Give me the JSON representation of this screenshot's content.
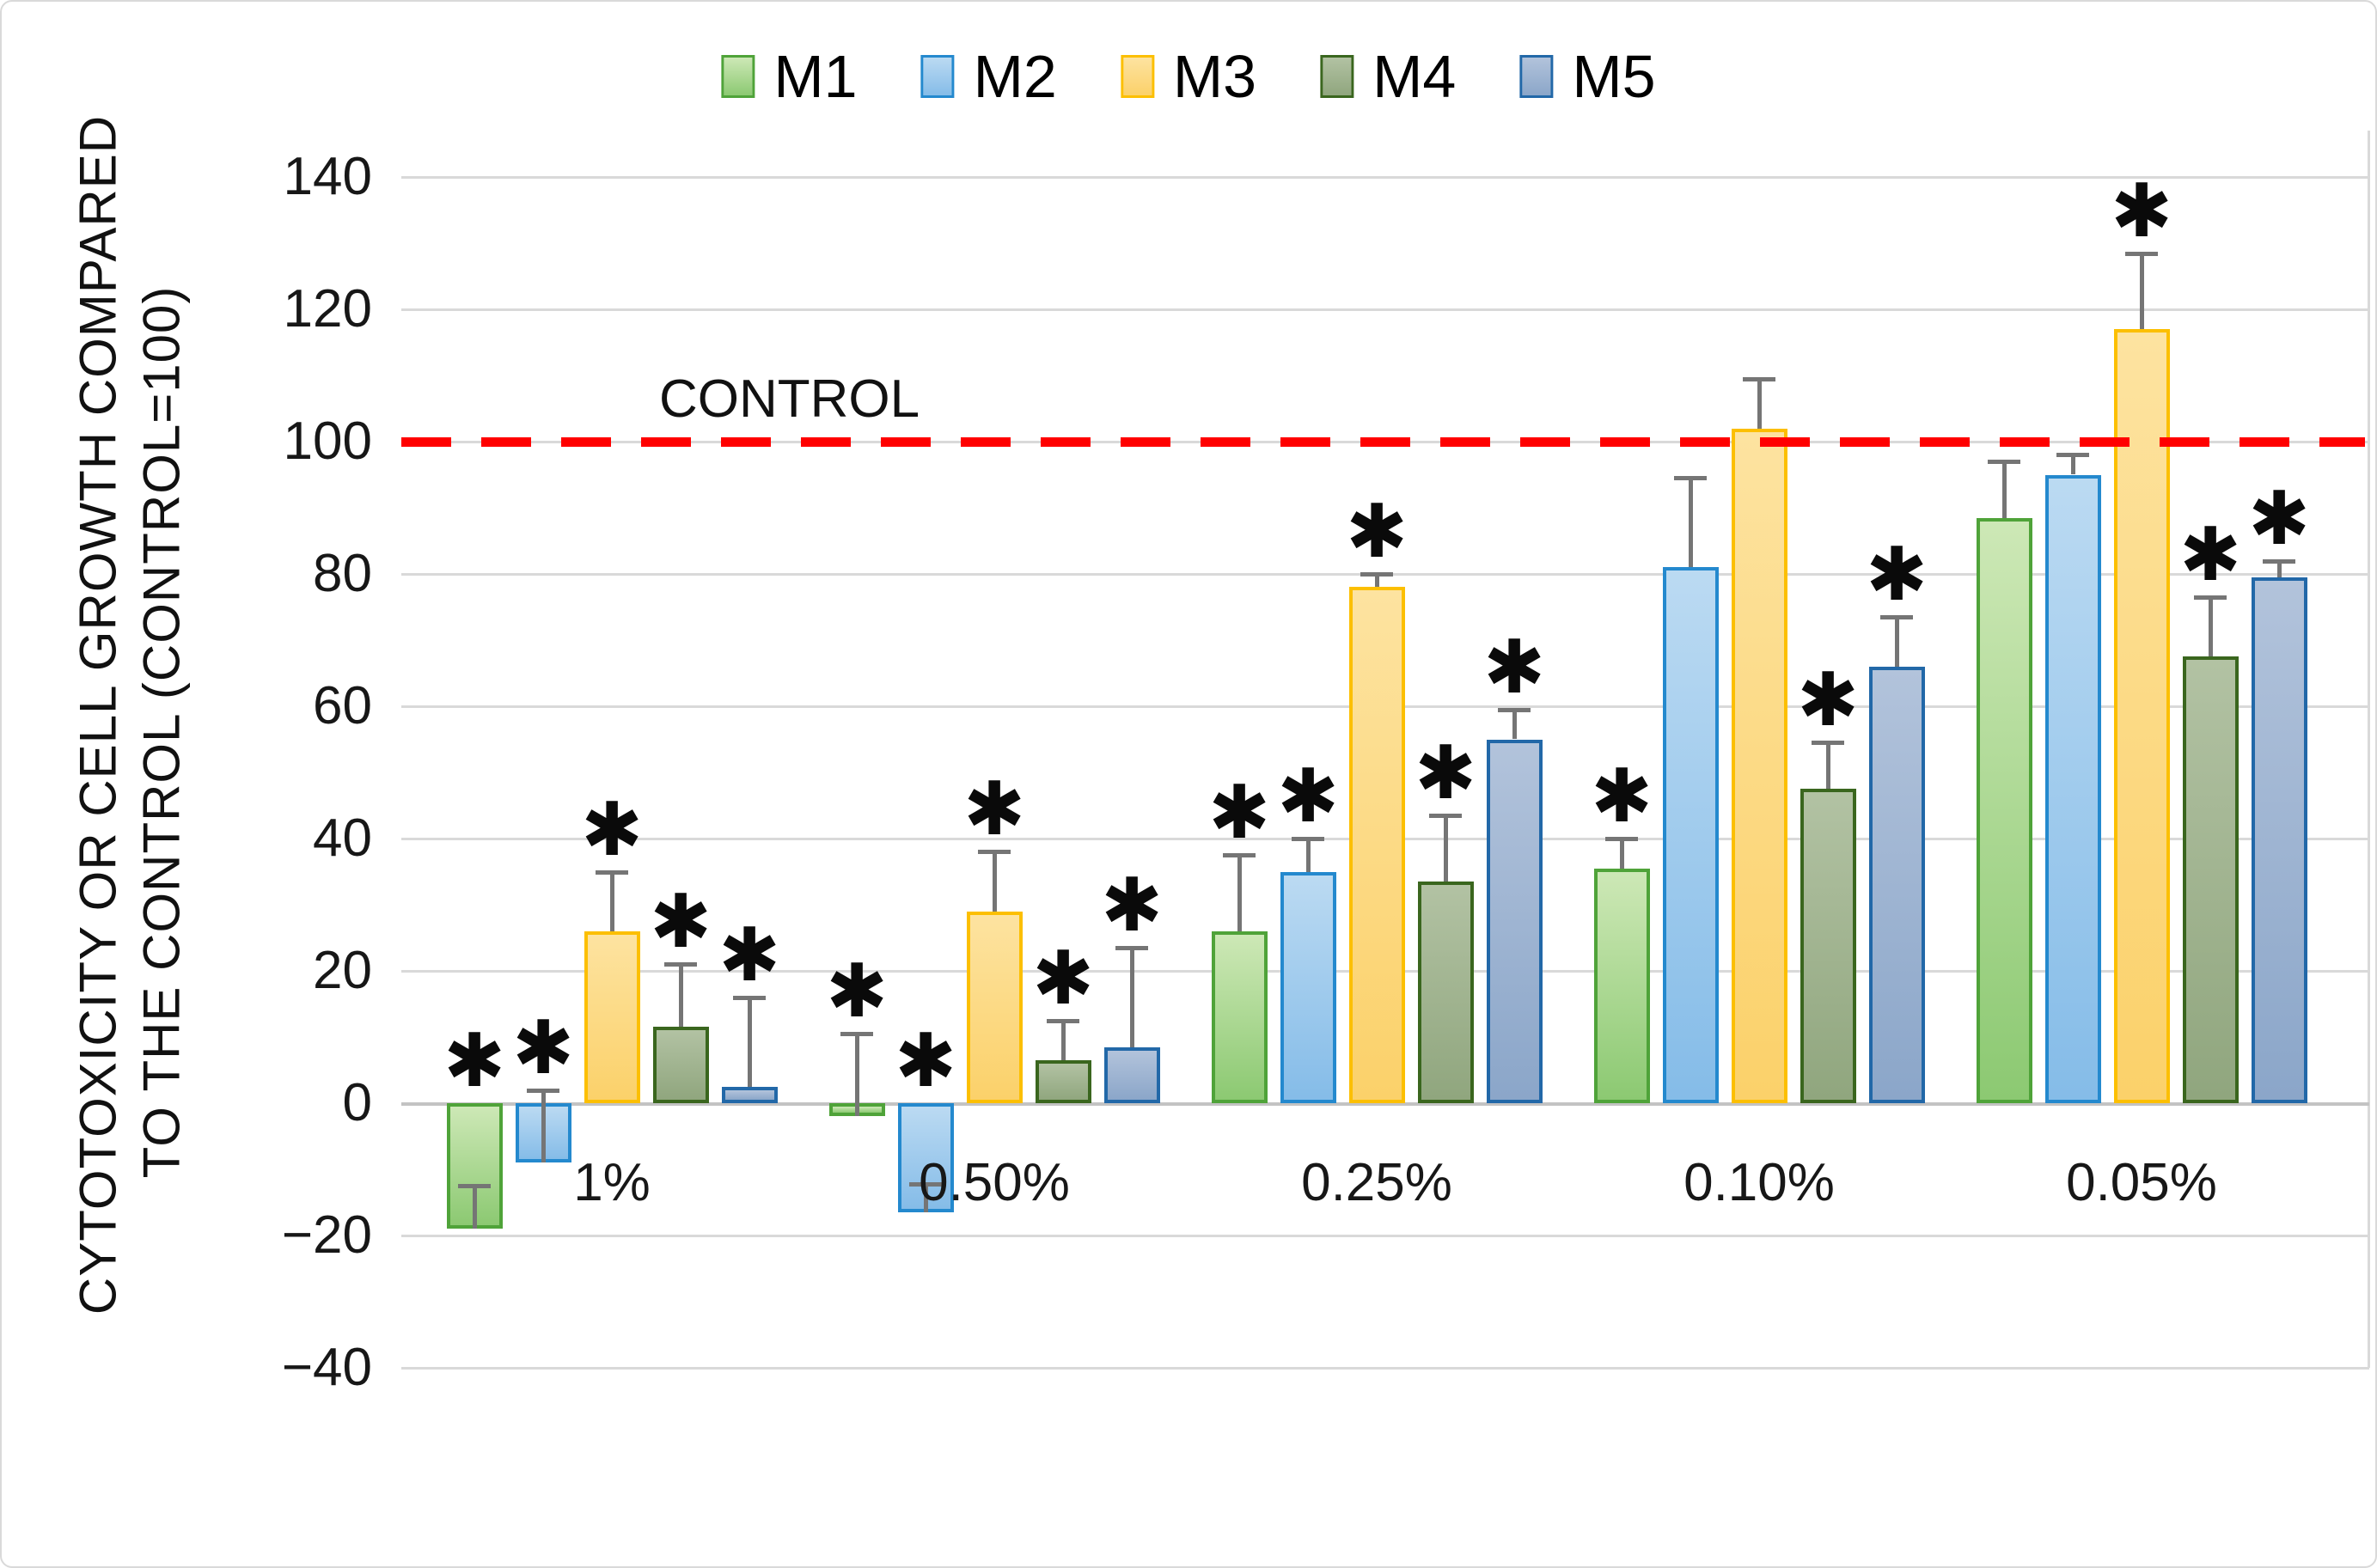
{
  "chart_data": {
    "type": "bar",
    "title": "",
    "ylabel_line1": "CYTOTOXICITY OR CELL GROWTH COMPARED",
    "ylabel_line2": "TO THE CONTROL (CONTROL=100)",
    "xlabel": "",
    "categories": [
      "1%",
      "0.50%",
      "0.25%",
      "0.10%",
      "0.05%"
    ],
    "y_ticks": [
      140,
      120,
      100,
      80,
      60,
      40,
      20,
      0,
      -20,
      -40
    ],
    "ylim": [
      -40,
      140
    ],
    "grid": true,
    "legend_position": "top",
    "significance_marker": "✱",
    "control_line": {
      "label": "CONTROL",
      "value": 100,
      "color": "#FF0000"
    },
    "series": [
      {
        "name": "M1",
        "values": [
          -19,
          -2,
          26,
          35.5,
          88.5
        ],
        "errors": [
          6.5,
          12.5,
          11.5,
          4.5,
          8.5
        ],
        "significant": [
          true,
          true,
          true,
          true,
          false
        ],
        "border": "#4FA339",
        "fill_top": "#CDE8B6",
        "fill_bottom": "#8CC972"
      },
      {
        "name": "M2",
        "values": [
          -9,
          -16.5,
          35,
          81,
          95
        ],
        "errors": [
          11,
          4.3,
          5,
          13.5,
          3
        ],
        "significant": [
          true,
          true,
          true,
          false,
          false
        ],
        "border": "#2489CE",
        "fill_top": "#BBDAF2",
        "fill_bottom": "#85BCE8"
      },
      {
        "name": "M3",
        "values": [
          26,
          29,
          78,
          102,
          117
        ],
        "errors": [
          9,
          9,
          2,
          7.5,
          11.5
        ],
        "significant": [
          true,
          true,
          true,
          false,
          true
        ],
        "border": "#FCBF01",
        "fill_top": "#FDE3A0",
        "fill_bottom": "#FBD16A"
      },
      {
        "name": "M4",
        "values": [
          11.5,
          6.5,
          33.5,
          47.5,
          67.5
        ],
        "errors": [
          9.5,
          6,
          10,
          7,
          9
        ],
        "significant": [
          true,
          true,
          true,
          true,
          true
        ],
        "border": "#3A661E",
        "fill_top": "#B2C2A3",
        "fill_bottom": "#90A67E"
      },
      {
        "name": "M5",
        "values": [
          2.5,
          8.5,
          55,
          66,
          79.5
        ],
        "errors": [
          13.5,
          15,
          4.5,
          7.5,
          2.5
        ],
        "significant": [
          true,
          true,
          true,
          true,
          true
        ],
        "border": "#2268A8",
        "fill_top": "#B2C3DB",
        "fill_bottom": "#8BA6C9"
      }
    ],
    "error_bar_color": "#757575",
    "gridline_color": "#D9D9D9"
  }
}
